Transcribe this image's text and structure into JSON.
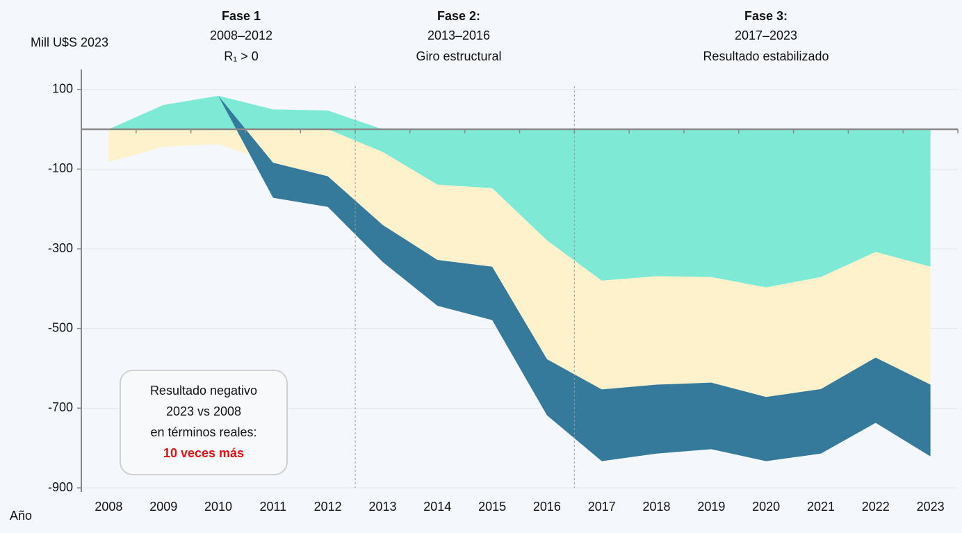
{
  "chart_data": {
    "type": "stacked_area",
    "y_label": "Mill U$S 2023",
    "x_label": "Año",
    "categories": [
      "2008",
      "2009",
      "2010",
      "2011",
      "2012",
      "2013",
      "2014",
      "2015",
      "2016",
      "2017",
      "2018",
      "2019",
      "2020",
      "2021",
      "2022",
      "2023"
    ],
    "series": [
      {
        "color": "#7eead6",
        "values": [
          0,
          61,
          84,
          50,
          47,
          -57,
          -139,
          -148,
          -279,
          -380,
          -369,
          -371,
          -397,
          -371,
          -308,
          -345
        ]
      },
      {
        "color": "#fef2cc",
        "values": [
          -82,
          -44,
          -37,
          -84,
          -118,
          -183,
          -189,
          -197,
          -298,
          -273,
          -272,
          -265,
          -275,
          -281,
          -265,
          -296
        ]
      },
      {
        "color": "#357a9b",
        "values": [
          0,
          0,
          0,
          -88,
          -77,
          -93,
          -115,
          -134,
          -141,
          -180,
          -173,
          -167,
          -161,
          -162,
          -164,
          -180
        ]
      }
    ],
    "ylim": [
      -900,
      150
    ],
    "yticks": [
      100,
      -100,
      -300,
      -500,
      -700,
      -900
    ],
    "phases": [
      {
        "title": "Fase 1",
        "years": "2008–2012",
        "note": "R₁ > 0"
      },
      {
        "title": "Fase 2:",
        "years": "2013–2016",
        "note": "Giro estructural"
      },
      {
        "title": "Fase 3:",
        "years": "2017–2023",
        "note": "Resultado estabilizado"
      }
    ],
    "annotation": {
      "lines": [
        "Resultado negativo",
        "2023 vs 2008",
        "en términos reales:"
      ],
      "highlight": "10 veces más"
    }
  }
}
